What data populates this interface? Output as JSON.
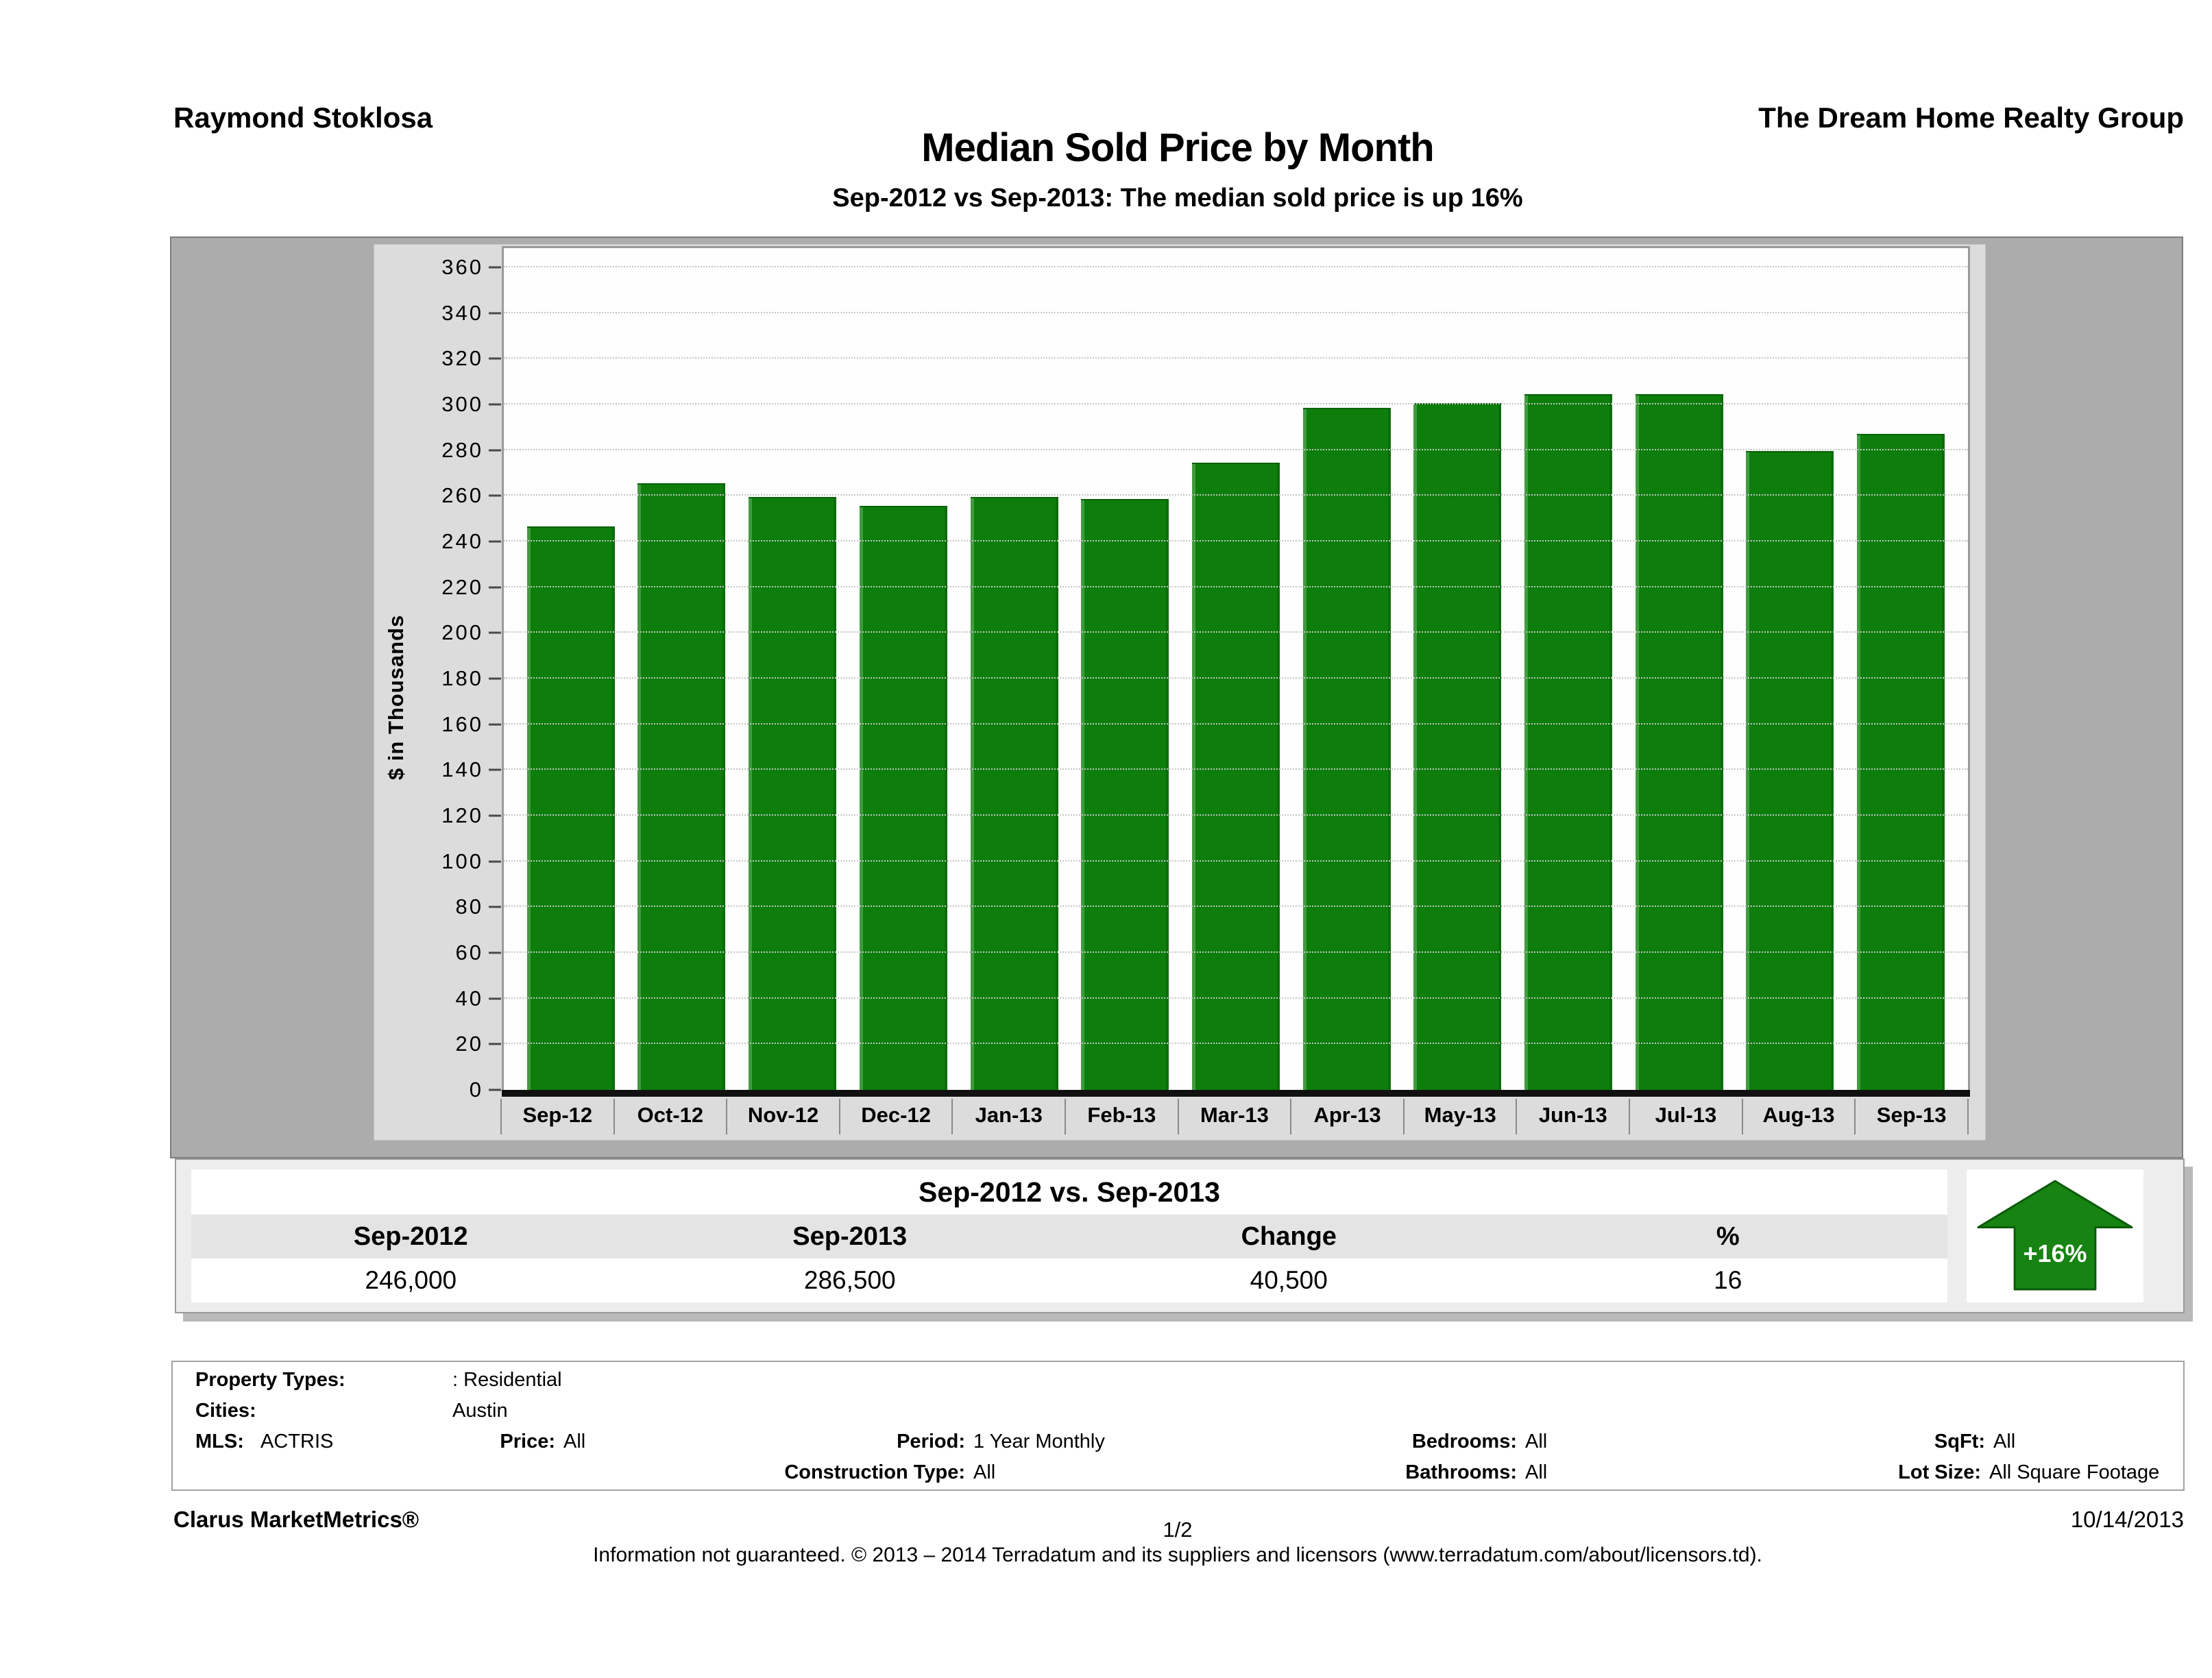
{
  "header": {
    "agent_name": "Raymond Stoklosa",
    "company": "The Dream Home Realty Group",
    "title": "Median Sold Price by Month",
    "subtitle": "Sep-2012 vs Sep-2013: The median sold price is up 16%"
  },
  "chart_data": {
    "type": "bar",
    "title": "Median Sold Price by Month",
    "categories": [
      "Sep-12",
      "Oct-12",
      "Nov-12",
      "Dec-12",
      "Jan-13",
      "Feb-13",
      "Mar-13",
      "Apr-13",
      "May-13",
      "Jun-13",
      "Jul-13",
      "Aug-13",
      "Sep-13"
    ],
    "values": [
      246,
      265,
      259,
      255,
      259,
      258,
      274,
      298,
      300,
      304,
      304,
      279,
      286.5
    ],
    "ylabel": "$ in Thousands",
    "xlabel": "",
    "ylim": [
      0,
      360
    ],
    "ytick_step": 20,
    "bar_color": "#0d7e0c",
    "grid": true,
    "legend_position": "none"
  },
  "summary_table": {
    "title": "Sep-2012 vs. Sep-2013",
    "columns": [
      "Sep-2012",
      "Sep-2013",
      "Change",
      "%"
    ],
    "values": [
      "246,000",
      "286,500",
      "40,500",
      "16"
    ],
    "badge": "+16%",
    "arrow_color": "#168312"
  },
  "filters": {
    "property_types_label": "Property Types:",
    "property_types": ": Residential",
    "cities_label": "Cities:",
    "cities": "Austin",
    "mls_label": "MLS:",
    "mls": "ACTRIS",
    "price_label": "Price:",
    "price": "All",
    "period_label": "Period:",
    "period": "1 Year Monthly",
    "bedrooms_label": "Bedrooms:",
    "bedrooms": "All",
    "sqft_label": "SqFt:",
    "sqft": "All",
    "construction_label": "Construction Type:",
    "construction": "All",
    "bathrooms_label": "Bathrooms:",
    "bathrooms": "All",
    "lot_size_label": "Lot Size:",
    "lot_size": "All Square Footage"
  },
  "footer": {
    "brand": "Clarus MarketMetrics®",
    "page": "1/2",
    "date": "10/14/2013",
    "disclaimer": "Information not guaranteed. © 2013 – 2014 Terradatum and its suppliers and licensors (www.terradatum.com/about/licensors.td)."
  }
}
